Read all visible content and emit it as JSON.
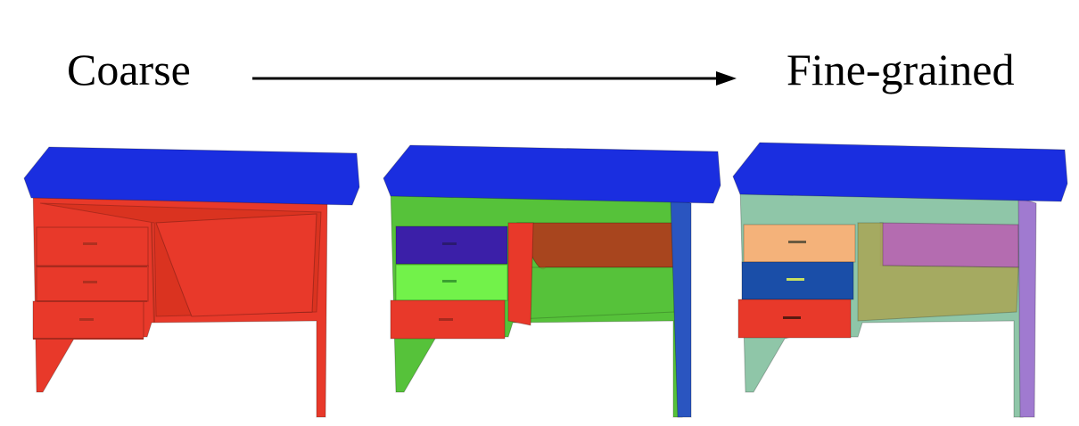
{
  "labels": {
    "start": "Coarse",
    "end": "Fine-grained"
  },
  "colors": {
    "tabletop": "#1a2ee0",
    "coarse_body": "#e8392a",
    "medium_frame": "#56c23a",
    "medium_drawer_top": "#3b1fa8",
    "medium_drawer_mid": "#72f24a",
    "medium_drawer_bottom": "#e8392a",
    "medium_back_panel": "#a8451e",
    "medium_right_leg": "#2a55c0",
    "fine_frame": "#8fc6a8",
    "fine_drawer_top": "#f4b27a",
    "fine_drawer_mid": "#1a4ea8",
    "fine_drawer_bottom": "#e8392a",
    "fine_back_panel": "#b46cb0",
    "fine_right_leg": "#a07ad0",
    "fine_shelf": "#a8a85a"
  }
}
